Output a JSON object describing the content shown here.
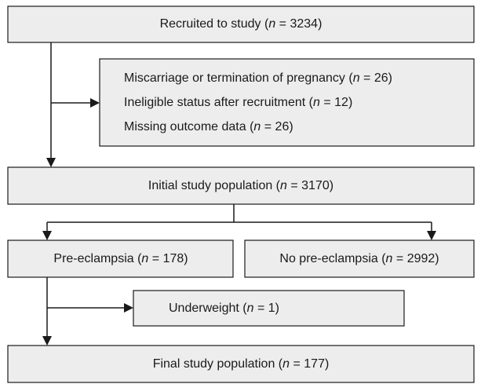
{
  "nodes": [
    {
      "lines": [
        [
          "Recruited to study (",
          "n",
          " = 3234)"
        ]
      ]
    },
    {
      "lines": [
        [
          "Miscarriage or termination of pregnancy (",
          "n",
          " = 26)"
        ],
        [
          "Ineligible status after recruitment (",
          "n",
          " = 12)"
        ],
        [
          "Missing outcome data (",
          "n",
          " = 26)"
        ]
      ]
    },
    {
      "lines": [
        [
          "Initial study population (",
          "n",
          " = 3170)"
        ]
      ]
    },
    {
      "lines": [
        [
          "Pre-eclampsia (",
          "n",
          " = 178)"
        ]
      ]
    },
    {
      "lines": [
        [
          "No pre-eclampsia (",
          "n",
          " = 2992)"
        ]
      ]
    },
    {
      "lines": [
        [
          "Underweight (",
          "n",
          " = 1)"
        ]
      ]
    },
    {
      "lines": [
        [
          "Final study population (",
          "n",
          " = 177)"
        ]
      ]
    }
  ]
}
